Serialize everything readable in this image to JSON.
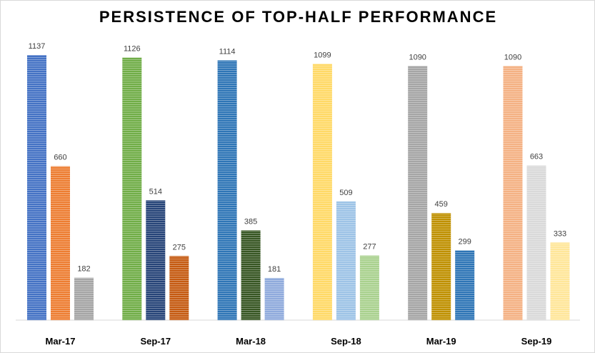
{
  "chart_data": {
    "type": "bar",
    "title": "PERSISTENCE OF TOP-HALF PERFORMANCE",
    "categories": [
      "Mar-17",
      "Sep-17",
      "Mar-18",
      "Sep-18",
      "Mar-19",
      "Sep-19"
    ],
    "groups": [
      {
        "values": [
          1137,
          660,
          182
        ],
        "colors": [
          "#4472c4",
          "#ed7d31",
          "#a5a5a5"
        ]
      },
      {
        "values": [
          1126,
          514,
          275
        ],
        "colors": [
          "#70ad47",
          "#264478",
          "#c55a11"
        ]
      },
      {
        "values": [
          1114,
          385,
          181
        ],
        "colors": [
          "#2e75b6",
          "#375623",
          "#8faadc"
        ]
      },
      {
        "values": [
          1099,
          509,
          277
        ],
        "colors": [
          "#ffd966",
          "#9dc3e6",
          "#a9d18e"
        ]
      },
      {
        "values": [
          1090,
          459,
          299
        ],
        "colors": [
          "#a5a5a5",
          "#bf9000",
          "#2e75b6"
        ]
      },
      {
        "values": [
          1090,
          663,
          333
        ],
        "colors": [
          "#f4b183",
          "#d9d9d9",
          "#ffe699"
        ]
      }
    ],
    "ylim": [
      0,
      1137
    ],
    "grid": false,
    "legend": "none"
  }
}
